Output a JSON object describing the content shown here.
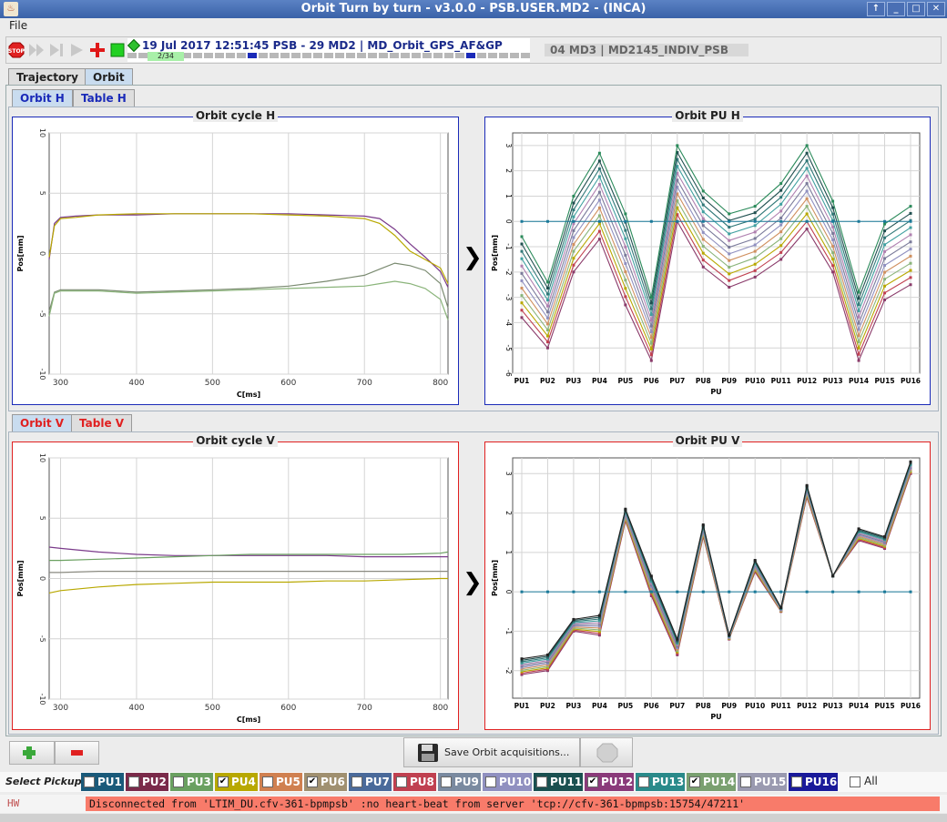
{
  "window": {
    "title": "Orbit Turn by turn - v3.0.0 - PSB.USER.MD2 - (INCA)"
  },
  "menu": {
    "file": "File"
  },
  "toolbar": {
    "timestamp": "19 Jul 2017  12:51:45  PSB - 29 MD2 | MD_Orbit_GPS_AF&GP",
    "cycle_counter": "2/34",
    "user_field": "04 MD3 | MD2145_INDIV_PSB"
  },
  "tabs": {
    "trajectory": "Trajectory",
    "orbit": "Orbit"
  },
  "subtabs_h": {
    "orbit": "Orbit H",
    "table": "Table H"
  },
  "subtabs_v": {
    "orbit": "Orbit V",
    "table": "Table V"
  },
  "colors": {
    "h_accent": "#1a2ab8",
    "v_accent": "#e02020"
  },
  "chart_data": [
    {
      "type": "line",
      "title": "Orbit cycle H",
      "xlabel": "C[ms]",
      "ylabel": "Pos[mm]",
      "xlim": [
        285,
        810
      ],
      "ylim": [
        -10,
        10
      ],
      "xticks": [
        300,
        400,
        500,
        600,
        700,
        800
      ],
      "yticks": [
        -10,
        -5,
        0,
        5,
        10
      ],
      "grid": true,
      "series": [
        {
          "color": "#7a3a8a",
          "x": [
            285,
            292,
            300,
            320,
            350,
            400,
            450,
            500,
            550,
            600,
            650,
            700,
            720,
            740,
            760,
            780,
            800,
            810
          ],
          "values": [
            -0.5,
            2.5,
            3.0,
            3.1,
            3.2,
            3.2,
            3.3,
            3.3,
            3.3,
            3.3,
            3.2,
            3.1,
            2.9,
            2.0,
            0.8,
            -0.3,
            -1.5,
            -2.8
          ]
        },
        {
          "color": "#b8a800",
          "x": [
            285,
            292,
            300,
            320,
            350,
            400,
            450,
            500,
            550,
            600,
            650,
            700,
            720,
            740,
            760,
            780,
            800,
            810
          ],
          "values": [
            -0.3,
            2.3,
            2.9,
            3.0,
            3.2,
            3.3,
            3.3,
            3.3,
            3.3,
            3.2,
            3.1,
            2.9,
            2.5,
            1.5,
            0.2,
            -0.5,
            -1.2,
            -2.5
          ]
        },
        {
          "color": "#7a8a70",
          "x": [
            285,
            292,
            300,
            350,
            400,
            450,
            500,
            550,
            600,
            650,
            700,
            720,
            740,
            760,
            780,
            800,
            810
          ],
          "values": [
            -4.8,
            -3.2,
            -3.0,
            -3.0,
            -3.2,
            -3.1,
            -3.0,
            -2.9,
            -2.7,
            -2.3,
            -1.8,
            -1.3,
            -0.8,
            -1.0,
            -1.4,
            -2.5,
            -4.5
          ]
        },
        {
          "color": "#8ab47a",
          "x": [
            285,
            292,
            300,
            350,
            400,
            450,
            500,
            550,
            600,
            650,
            700,
            720,
            740,
            760,
            780,
            800,
            810
          ],
          "values": [
            -5.2,
            -3.3,
            -3.1,
            -3.1,
            -3.3,
            -3.2,
            -3.1,
            -3.0,
            -2.9,
            -2.8,
            -2.7,
            -2.5,
            -2.3,
            -2.5,
            -2.9,
            -3.8,
            -5.5
          ]
        }
      ]
    },
    {
      "type": "line",
      "title": "Orbit PU H",
      "xlabel": "PU",
      "ylabel": "Pos[mm]",
      "categories": [
        "PU1",
        "PU2",
        "PU3",
        "PU4",
        "PU5",
        "PU6",
        "PU7",
        "PU8",
        "PU9",
        "PU10",
        "PU11",
        "PU12",
        "PU13",
        "PU14",
        "PU15",
        "PU16"
      ],
      "ylim": [
        -6,
        3.5
      ],
      "yticks": [
        -6,
        -5,
        -4,
        -3,
        -2,
        -1,
        0,
        1,
        2,
        3
      ],
      "grid": true,
      "envelope_top": [
        -0.6,
        -2.4,
        1.0,
        2.7,
        0.3,
        -3.0,
        3.0,
        1.2,
        0.3,
        0.6,
        1.5,
        3.0,
        0.8,
        -2.8,
        -0.1,
        0.6
      ],
      "envelope_bottom": [
        -3.8,
        -5.0,
        -2.0,
        -0.7,
        -3.3,
        -5.5,
        0.0,
        -1.8,
        -2.6,
        -2.2,
        -1.5,
        -0.3,
        -2.0,
        -5.5,
        -3.1,
        -2.5
      ],
      "n_lines": 12,
      "line_colors": [
        "#8a3a6a",
        "#c04050",
        "#b8a800",
        "#8ab47a",
        "#d09060",
        "#9090c0",
        "#7a7a9a",
        "#b080b0",
        "#40a0a0",
        "#307878",
        "#205050",
        "#2a8a5a"
      ],
      "reference": {
        "color": "#1a7a9a",
        "values": [
          0,
          0,
          0,
          0,
          0,
          0,
          0,
          0,
          0,
          0,
          0,
          0,
          0,
          0,
          0,
          0
        ]
      }
    },
    {
      "type": "line",
      "title": "Orbit cycle V",
      "xlabel": "C[ms]",
      "ylabel": "Pos[mm]",
      "xlim": [
        285,
        810
      ],
      "ylim": [
        -10,
        10
      ],
      "xticks": [
        300,
        400,
        500,
        600,
        700,
        800
      ],
      "yticks": [
        -10,
        -5,
        0,
        5,
        10
      ],
      "grid": true,
      "series": [
        {
          "color": "#7a3a8a",
          "x": [
            285,
            300,
            350,
            400,
            450,
            500,
            550,
            600,
            650,
            700,
            750,
            800,
            810
          ],
          "values": [
            2.6,
            2.5,
            2.2,
            2.0,
            1.9,
            1.9,
            1.9,
            1.9,
            1.9,
            1.8,
            1.8,
            1.8,
            1.8
          ]
        },
        {
          "color": "#6aa060",
          "x": [
            285,
            300,
            350,
            400,
            450,
            500,
            550,
            600,
            650,
            700,
            750,
            800,
            810
          ],
          "values": [
            1.5,
            1.5,
            1.6,
            1.7,
            1.8,
            1.9,
            2.0,
            2.0,
            2.0,
            2.0,
            2.0,
            2.1,
            2.2
          ]
        },
        {
          "color": "#8a8a80",
          "x": [
            285,
            300,
            350,
            400,
            450,
            500,
            550,
            600,
            650,
            700,
            750,
            800,
            810
          ],
          "values": [
            0.5,
            0.5,
            0.6,
            0.6,
            0.6,
            0.6,
            0.6,
            0.6,
            0.6,
            0.6,
            0.6,
            0.6,
            0.6
          ]
        },
        {
          "color": "#b8a800",
          "x": [
            285,
            300,
            350,
            400,
            450,
            500,
            550,
            600,
            650,
            700,
            750,
            800,
            810
          ],
          "values": [
            -1.2,
            -1.0,
            -0.7,
            -0.5,
            -0.4,
            -0.3,
            -0.3,
            -0.3,
            -0.2,
            -0.2,
            -0.1,
            0.0,
            0.0
          ]
        }
      ]
    },
    {
      "type": "line",
      "title": "Orbit PU V",
      "xlabel": "PU",
      "ylabel": "Pos[mm]",
      "categories": [
        "PU1",
        "PU2",
        "PU3",
        "PU4",
        "PU5",
        "PU6",
        "PU7",
        "PU8",
        "PU9",
        "PU10",
        "PU11",
        "PU12",
        "PU13",
        "PU14",
        "PU15",
        "PU16"
      ],
      "ylim": [
        -2.7,
        3.4
      ],
      "yticks": [
        -2,
        -1,
        0,
        1,
        2,
        3
      ],
      "grid": true,
      "envelope_top": [
        -1.7,
        -1.6,
        -0.7,
        -0.6,
        2.1,
        0.4,
        -1.2,
        1.7,
        -1.1,
        0.8,
        -0.4,
        2.7,
        0.4,
        1.6,
        1.4,
        3.3
      ],
      "envelope_bottom": [
        -2.1,
        -2.0,
        -1.0,
        -1.1,
        1.8,
        -0.1,
        -1.6,
        1.4,
        -1.2,
        0.5,
        -0.5,
        2.4,
        0.4,
        1.3,
        1.1,
        3.0
      ],
      "n_lines": 12,
      "line_colors": [
        "#8a3a6a",
        "#c04050",
        "#b8a800",
        "#8ab47a",
        "#d09060",
        "#9090c0",
        "#7a7a9a",
        "#b080b0",
        "#40a0a0",
        "#307878",
        "#205050",
        "#222222"
      ],
      "reference": {
        "color": "#1a7a9a",
        "values": [
          0,
          0,
          0,
          0,
          0,
          0,
          0,
          0,
          0,
          0,
          0,
          0,
          0,
          0,
          0,
          0
        ]
      }
    }
  ],
  "buttons": {
    "save": "Save Orbit acquisitions..."
  },
  "pickup": {
    "label": "Select Pickup:",
    "items": [
      {
        "label": "PU1",
        "color": "#1a5a7a",
        "checked": false
      },
      {
        "label": "PU2",
        "color": "#7a2a4a",
        "checked": false
      },
      {
        "label": "PU3",
        "color": "#6aa060",
        "checked": false
      },
      {
        "label": "PU4",
        "color": "#b8a800",
        "checked": true
      },
      {
        "label": "PU5",
        "color": "#d08050",
        "checked": false
      },
      {
        "label": "PU6",
        "color": "#a09070",
        "checked": true
      },
      {
        "label": "PU7",
        "color": "#4a6a9a",
        "checked": false
      },
      {
        "label": "PU8",
        "color": "#c04050",
        "checked": false
      },
      {
        "label": "PU9",
        "color": "#7a8aa0",
        "checked": false
      },
      {
        "label": "PU10",
        "color": "#9090c0",
        "checked": false
      },
      {
        "label": "PU11",
        "color": "#1a5050",
        "checked": false
      },
      {
        "label": "PU12",
        "color": "#8a3a7a",
        "checked": true
      },
      {
        "label": "PU13",
        "color": "#2a8a8a",
        "checked": false
      },
      {
        "label": "PU14",
        "color": "#7aa070",
        "checked": true
      },
      {
        "label": "PU15",
        "color": "#9a9ab0",
        "checked": false
      },
      {
        "label": "PU16",
        "color": "#1a1a9a",
        "checked": false
      }
    ],
    "all_label": "All"
  },
  "status": {
    "source": "HW",
    "message": "Disconnected from 'LTIM_DU.cfv-361-bpmpsb' :no heart-beat from server 'tcp://cfv-361-bpmpsb:15754/47211'"
  }
}
